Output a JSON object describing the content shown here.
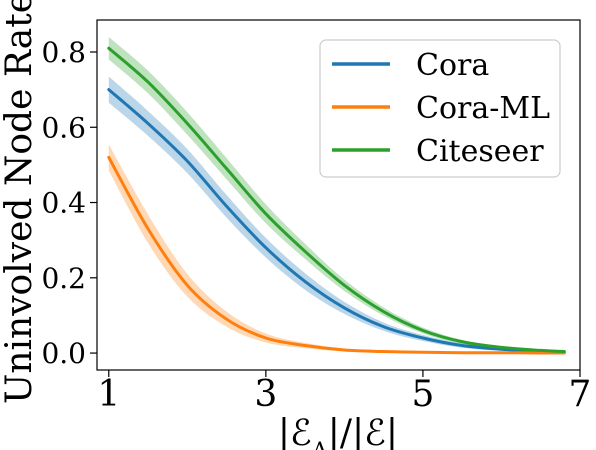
{
  "chart_data": {
    "type": "line",
    "title": "",
    "xlabel": "|ℰ_A|/|ℰ|",
    "ylabel": "Uninvolved Node Rate",
    "xlim": [
      0.85,
      7.0
    ],
    "ylim": [
      -0.045,
      0.885
    ],
    "xticks": [
      1,
      3,
      5,
      7
    ],
    "yticks": [
      0.0,
      0.2,
      0.4,
      0.6,
      0.8
    ],
    "ytick_labels": [
      "0.0",
      "0.2",
      "0.4",
      "0.6",
      "0.8"
    ],
    "grid": false,
    "legend_position": "top-right",
    "x": [
      1.0,
      1.5,
      2.0,
      2.5,
      3.0,
      3.5,
      4.0,
      4.5,
      5.0,
      5.5,
      6.0,
      6.5,
      6.8
    ],
    "series": [
      {
        "name": "Cora",
        "color": "#1f77b4",
        "values": [
          0.7,
          0.61,
          0.51,
          0.39,
          0.28,
          0.19,
          0.12,
          0.07,
          0.04,
          0.02,
          0.01,
          0.005,
          0.003
        ],
        "band": [
          0.035,
          0.033,
          0.032,
          0.03,
          0.026,
          0.022,
          0.016,
          0.011,
          0.008,
          0.006,
          0.004,
          0.003,
          0.002
        ]
      },
      {
        "name": "Cora-ML",
        "color": "#ff7f0e",
        "values": [
          0.52,
          0.33,
          0.18,
          0.09,
          0.04,
          0.02,
          0.008,
          0.004,
          0.002,
          0.001,
          0.001,
          0.0,
          0.0
        ],
        "band": [
          0.035,
          0.038,
          0.03,
          0.02,
          0.012,
          0.007,
          0.004,
          0.002,
          0.001,
          0.001,
          0.001,
          0.0,
          0.0
        ]
      },
      {
        "name": "Citeseer",
        "color": "#2ca02c",
        "values": [
          0.81,
          0.72,
          0.61,
          0.49,
          0.37,
          0.27,
          0.18,
          0.11,
          0.06,
          0.03,
          0.015,
          0.007,
          0.004
        ],
        "band": [
          0.03,
          0.03,
          0.03,
          0.028,
          0.025,
          0.02,
          0.015,
          0.011,
          0.008,
          0.005,
          0.004,
          0.003,
          0.002
        ]
      }
    ]
  }
}
